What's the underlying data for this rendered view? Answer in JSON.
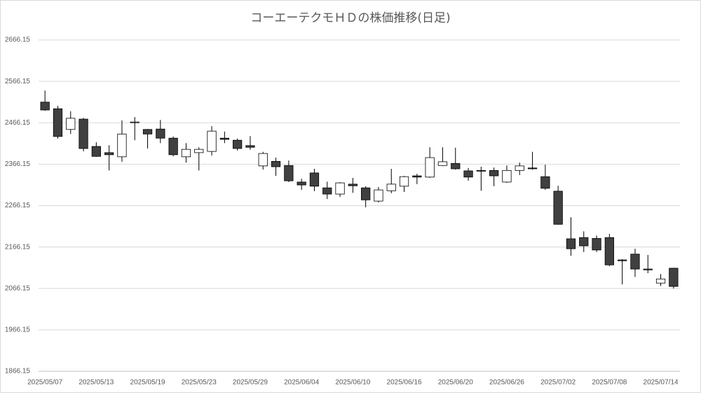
{
  "chart_data": {
    "type": "candlestick",
    "title": "コーエーテクモＨＤの株価推移(日足)",
    "categories": [
      "2025/05/07",
      null,
      null,
      null,
      "2025/05/13",
      null,
      null,
      null,
      "2025/05/19",
      null,
      null,
      null,
      "2025/05/23",
      null,
      null,
      null,
      "2025/05/29",
      null,
      null,
      null,
      "2025/06/04",
      null,
      null,
      null,
      "2025/06/10",
      null,
      null,
      null,
      "2025/06/16",
      null,
      null,
      null,
      "2025/06/20",
      null,
      null,
      null,
      "2025/06/26",
      null,
      null,
      null,
      "2025/07/02",
      null,
      null,
      null,
      "2025/07/08",
      null,
      null,
      null,
      "2025/07/14",
      null
    ],
    "open": [
      2516,
      2500,
      2450,
      2475,
      2409,
      2394,
      2384,
      2467,
      2450,
      2451,
      2429,
      2384,
      2394,
      2397,
      2429,
      2424,
      2411,
      2362,
      2373,
      2363,
      2323,
      2345,
      2309,
      2294,
      2318,
      2309,
      2277,
      2302,
      2313,
      2338,
      2335,
      2363,
      2368,
      2350,
      2351,
      2351,
      2323,
      2351,
      2357,
      2336,
      2301,
      2186,
      2189,
      2187,
      2189,
      2135,
      2149,
      2113,
      2079,
      2115
    ],
    "high": [
      2544,
      2507,
      2494,
      2478,
      2419,
      2412,
      2472,
      2480,
      2451,
      2473,
      2433,
      2417,
      2407,
      2458,
      2445,
      2428,
      2434,
      2396,
      2382,
      2375,
      2331,
      2355,
      2324,
      2323,
      2333,
      2313,
      2311,
      2355,
      2338,
      2343,
      2407,
      2407,
      2406,
      2357,
      2360,
      2358,
      2363,
      2370,
      2396,
      2365,
      2314,
      2238,
      2204,
      2194,
      2198,
      2137,
      2162,
      2147,
      2101,
      2116
    ],
    "low": [
      2495,
      2428,
      2439,
      2397,
      2384,
      2351,
      2372,
      2424,
      2404,
      2417,
      2385,
      2370,
      2351,
      2387,
      2417,
      2399,
      2401,
      2353,
      2338,
      2323,
      2304,
      2301,
      2282,
      2287,
      2297,
      2262,
      2274,
      2296,
      2299,
      2318,
      2333,
      2362,
      2353,
      2326,
      2302,
      2313,
      2321,
      2340,
      2353,
      2304,
      2220,
      2145,
      2154,
      2154,
      2120,
      2076,
      2094,
      2103,
      2072,
      2066
    ],
    "close": [
      2497,
      2433,
      2477,
      2404,
      2385,
      2389,
      2439,
      2468,
      2439,
      2429,
      2389,
      2402,
      2402,
      2446,
      2426,
      2404,
      2407,
      2392,
      2360,
      2326,
      2316,
      2313,
      2294,
      2321,
      2314,
      2280,
      2304,
      2318,
      2336,
      2335,
      2382,
      2372,
      2355,
      2335,
      2350,
      2338,
      2351,
      2362,
      2355,
      2308,
      2221,
      2162,
      2169,
      2159,
      2123,
      2133,
      2113,
      2111,
      2089,
      2071
    ],
    "up_color": "#ffffff",
    "down_color": "#404040",
    "ylim": [
      1866.15,
      2666.15
    ],
    "yticks": [
      1866.15,
      1966.15,
      2066.15,
      2166.15,
      2266.15,
      2366.15,
      2466.15,
      2566.15,
      2666.15
    ],
    "grid": true
  }
}
